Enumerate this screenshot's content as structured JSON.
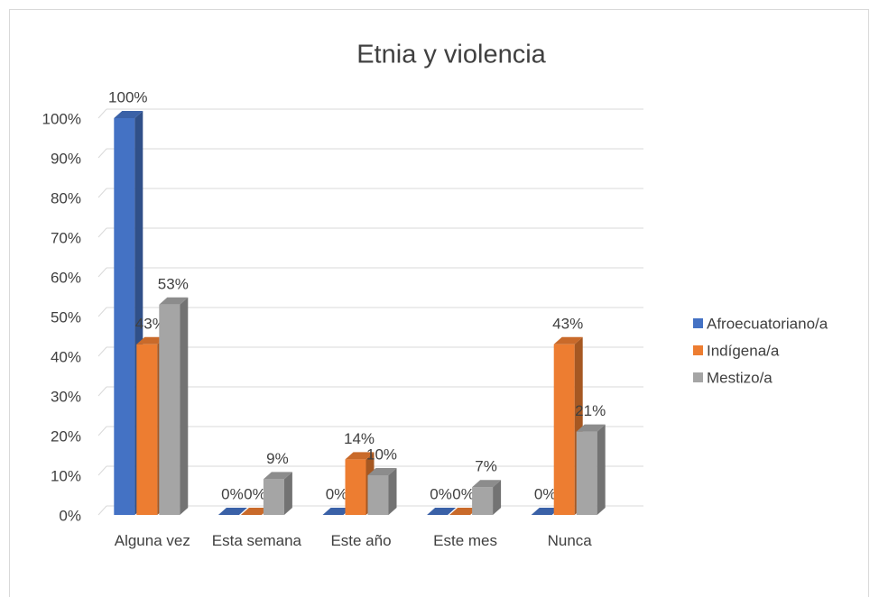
{
  "chart_data": {
    "type": "bar3d",
    "title": "Etnia y violencia",
    "categories": [
      "Alguna vez",
      "Esta semana",
      "Este año",
      "Este mes",
      "Nunca"
    ],
    "series": [
      {
        "name": "Afroecuatoriano/a",
        "color": "#4472c4",
        "values": [
          100,
          0,
          0,
          0,
          0
        ],
        "value_labels": [
          "100%",
          "0%",
          "0%",
          "0%",
          "0%"
        ]
      },
      {
        "name": "Indígena/a",
        "color": "#ed7d31",
        "values": [
          43,
          0,
          14,
          0,
          43
        ],
        "value_labels": [
          "43%",
          "0%",
          "14%",
          "0%",
          "43%"
        ]
      },
      {
        "name": "Mestizo/a",
        "color": "#a5a5a5",
        "values": [
          53,
          9,
          10,
          7,
          21
        ],
        "value_labels": [
          "53%",
          "9%",
          "10%",
          "7%",
          "21%"
        ]
      }
    ],
    "ylim": [
      0,
      100
    ],
    "yticks": [
      {
        "value": 0,
        "label": "0%"
      },
      {
        "value": 10,
        "label": "10%"
      },
      {
        "value": 20,
        "label": "20%"
      },
      {
        "value": 30,
        "label": "30%"
      },
      {
        "value": 40,
        "label": "40%"
      },
      {
        "value": 50,
        "label": "50%"
      },
      {
        "value": 60,
        "label": "60%"
      },
      {
        "value": 70,
        "label": "70%"
      },
      {
        "value": 80,
        "label": "80%"
      },
      {
        "value": 90,
        "label": "90%"
      },
      {
        "value": 100,
        "label": "100%"
      }
    ],
    "grid": true,
    "legend": "right"
  }
}
